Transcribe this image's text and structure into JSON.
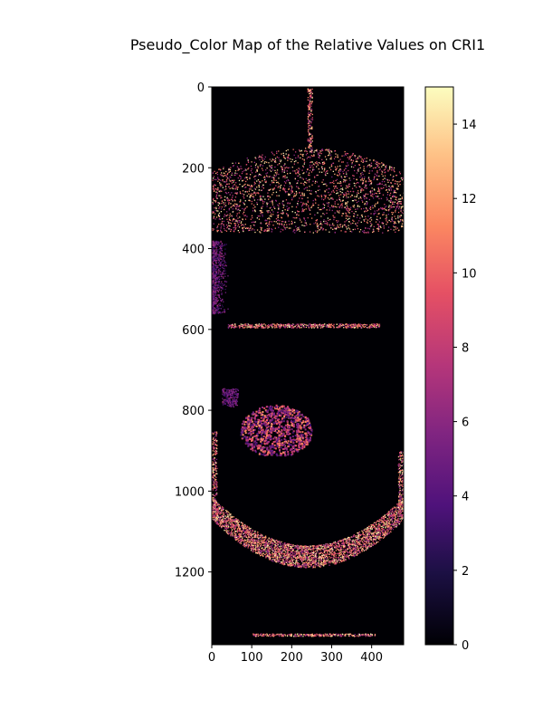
{
  "chart_data": {
    "type": "heatmap",
    "title": "Pseudo_Color Map of the Relative Values on CRI1",
    "xlabel": "",
    "ylabel": "",
    "x_ticks": [
      0,
      100,
      200,
      300,
      400
    ],
    "y_ticks": [
      0,
      200,
      400,
      600,
      800,
      1000,
      1200
    ],
    "xlim": [
      0,
      480
    ],
    "ylim": [
      1380,
      0
    ],
    "colormap": "magma",
    "colorbar": {
      "range": [
        0,
        15
      ],
      "ticks": [
        0,
        2,
        4,
        6,
        8,
        10,
        12,
        14
      ]
    },
    "grid": false,
    "features": {
      "top_speckle_band_y": [
        150,
        360
      ],
      "left_edge_speckle_y": [
        380,
        560
      ],
      "horizontal_line_y": 590,
      "center_blob_y": [
        770,
        910
      ],
      "center_blob_x": [
        60,
        250
      ],
      "small_square": {
        "x": [
          25,
          65
        ],
        "y": [
          745,
          790
        ]
      },
      "bottom_arc_y": [
        1000,
        1210
      ],
      "bottom_line_y": 1355
    }
  }
}
